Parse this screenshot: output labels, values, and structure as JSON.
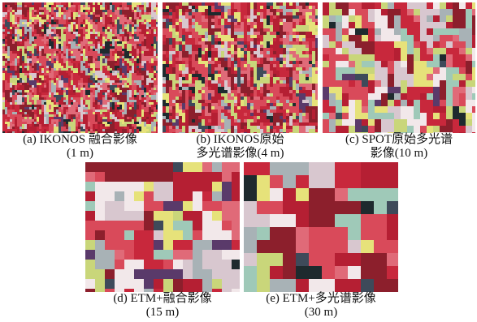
{
  "figure": {
    "panels": [
      {
        "id": "a",
        "caption_line1": "(a) IKONOS 融合影像",
        "caption_line2": "(1 m)"
      },
      {
        "id": "b",
        "caption_line1": "(b) IKONOS原始",
        "caption_line2": "多光谱影像(4 m)"
      },
      {
        "id": "c",
        "caption_line1": "(c) SPOT原始多光谱",
        "caption_line2": "影像(10 m)"
      },
      {
        "id": "d",
        "caption_line1": "(d) ETM+融合影像",
        "caption_line2": "(15 m)"
      },
      {
        "id": "e",
        "caption_line1": "(e) ETM+多光谱影像",
        "caption_line2": "(30 m)"
      }
    ],
    "colors": {
      "urban_red": "#c8283c",
      "vegetation_yellow": "#e6e27a",
      "water_dark": "#1e2a2e",
      "road_gray": "#a8b2b6"
    }
  }
}
